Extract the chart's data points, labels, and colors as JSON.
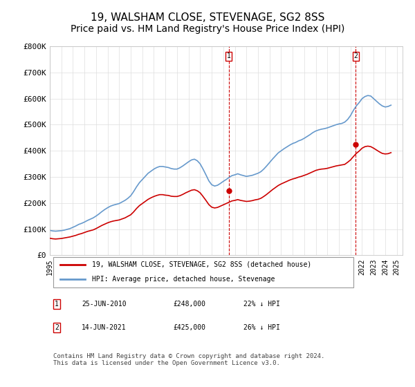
{
  "title": "19, WALSHAM CLOSE, STEVENAGE, SG2 8SS",
  "subtitle": "Price paid vs. HM Land Registry's House Price Index (HPI)",
  "ylabel": "",
  "ylim": [
    0,
    800000
  ],
  "yticks": [
    0,
    100000,
    200000,
    300000,
    400000,
    500000,
    600000,
    700000,
    800000
  ],
  "ytick_labels": [
    "£0",
    "£100K",
    "£200K",
    "£300K",
    "£400K",
    "£500K",
    "£600K",
    "£700K",
    "£800K"
  ],
  "xlim_start": 1995.0,
  "xlim_end": 2025.5,
  "line1_color": "#cc0000",
  "line2_color": "#6699cc",
  "transaction1_date": 2010.48,
  "transaction1_price": 248000,
  "transaction1_label": "1",
  "transaction2_date": 2021.45,
  "transaction2_price": 425000,
  "transaction2_label": "2",
  "legend_line1": "19, WALSHAM CLOSE, STEVENAGE, SG2 8SS (detached house)",
  "legend_line2": "HPI: Average price, detached house, Stevenage",
  "table_row1": [
    "1",
    "25-JUN-2010",
    "£248,000",
    "22% ↓ HPI"
  ],
  "table_row2": [
    "2",
    "14-JUN-2021",
    "£425,000",
    "26% ↓ HPI"
  ],
  "footnote": "Contains HM Land Registry data © Crown copyright and database right 2024.\nThis data is licensed under the Open Government Licence v3.0.",
  "background_color": "#ffffff",
  "grid_color": "#dddddd",
  "title_fontsize": 11,
  "subtitle_fontsize": 10,
  "hpi_data_x": [
    1995.0,
    1995.25,
    1995.5,
    1995.75,
    1996.0,
    1996.25,
    1996.5,
    1996.75,
    1997.0,
    1997.25,
    1997.5,
    1997.75,
    1998.0,
    1998.25,
    1998.5,
    1998.75,
    1999.0,
    1999.25,
    1999.5,
    1999.75,
    2000.0,
    2000.25,
    2000.5,
    2000.75,
    2001.0,
    2001.25,
    2001.5,
    2001.75,
    2002.0,
    2002.25,
    2002.5,
    2002.75,
    2003.0,
    2003.25,
    2003.5,
    2003.75,
    2004.0,
    2004.25,
    2004.5,
    2004.75,
    2005.0,
    2005.25,
    2005.5,
    2005.75,
    2006.0,
    2006.25,
    2006.5,
    2006.75,
    2007.0,
    2007.25,
    2007.5,
    2007.75,
    2008.0,
    2008.25,
    2008.5,
    2008.75,
    2009.0,
    2009.25,
    2009.5,
    2009.75,
    2010.0,
    2010.25,
    2010.5,
    2010.75,
    2011.0,
    2011.25,
    2011.5,
    2011.75,
    2012.0,
    2012.25,
    2012.5,
    2012.75,
    2013.0,
    2013.25,
    2013.5,
    2013.75,
    2014.0,
    2014.25,
    2014.5,
    2014.75,
    2015.0,
    2015.25,
    2015.5,
    2015.75,
    2016.0,
    2016.25,
    2016.5,
    2016.75,
    2017.0,
    2017.25,
    2017.5,
    2017.75,
    2018.0,
    2018.25,
    2018.5,
    2018.75,
    2019.0,
    2019.25,
    2019.5,
    2019.75,
    2020.0,
    2020.25,
    2020.5,
    2020.75,
    2021.0,
    2021.25,
    2021.5,
    2021.75,
    2022.0,
    2022.25,
    2022.5,
    2022.75,
    2023.0,
    2023.25,
    2023.5,
    2023.75,
    2024.0,
    2024.25,
    2024.5
  ],
  "hpi_data_y": [
    95000,
    93000,
    92000,
    93000,
    94000,
    96000,
    99000,
    102000,
    107000,
    112000,
    118000,
    122000,
    127000,
    133000,
    138000,
    143000,
    150000,
    158000,
    167000,
    175000,
    182000,
    188000,
    192000,
    195000,
    198000,
    204000,
    210000,
    218000,
    228000,
    244000,
    262000,
    278000,
    290000,
    302000,
    314000,
    322000,
    330000,
    336000,
    340000,
    340000,
    338000,
    336000,
    332000,
    330000,
    330000,
    335000,
    342000,
    350000,
    358000,
    365000,
    368000,
    362000,
    350000,
    330000,
    308000,
    285000,
    270000,
    265000,
    268000,
    275000,
    283000,
    290000,
    298000,
    305000,
    308000,
    312000,
    308000,
    305000,
    302000,
    304000,
    306000,
    310000,
    314000,
    320000,
    330000,
    342000,
    355000,
    368000,
    380000,
    392000,
    400000,
    408000,
    415000,
    422000,
    428000,
    432000,
    438000,
    442000,
    448000,
    455000,
    462000,
    470000,
    476000,
    480000,
    483000,
    485000,
    488000,
    492000,
    496000,
    500000,
    503000,
    505000,
    510000,
    520000,
    535000,
    555000,
    572000,
    585000,
    600000,
    608000,
    612000,
    610000,
    600000,
    590000,
    580000,
    572000,
    568000,
    570000,
    575000
  ],
  "hpi_red_x": [
    1995.0,
    1995.25,
    1995.5,
    1995.75,
    1996.0,
    1996.25,
    1996.5,
    1996.75,
    1997.0,
    1997.25,
    1997.5,
    1997.75,
    1998.0,
    1998.25,
    1998.5,
    1998.75,
    1999.0,
    1999.25,
    1999.5,
    1999.75,
    2000.0,
    2000.25,
    2000.5,
    2000.75,
    2001.0,
    2001.25,
    2001.5,
    2001.75,
    2002.0,
    2002.25,
    2002.5,
    2002.75,
    2003.0,
    2003.25,
    2003.5,
    2003.75,
    2004.0,
    2004.25,
    2004.5,
    2004.75,
    2005.0,
    2005.25,
    2005.5,
    2005.75,
    2006.0,
    2006.25,
    2006.5,
    2006.75,
    2007.0,
    2007.25,
    2007.5,
    2007.75,
    2008.0,
    2008.25,
    2008.5,
    2008.75,
    2009.0,
    2009.25,
    2009.5,
    2009.75,
    2010.0,
    2010.25,
    2010.5,
    2010.75,
    2011.0,
    2011.25,
    2011.5,
    2011.75,
    2012.0,
    2012.25,
    2012.5,
    2012.75,
    2013.0,
    2013.25,
    2013.5,
    2013.75,
    2014.0,
    2014.25,
    2014.5,
    2014.75,
    2015.0,
    2015.25,
    2015.5,
    2015.75,
    2016.0,
    2016.25,
    2016.5,
    2016.75,
    2017.0,
    2017.25,
    2017.5,
    2017.75,
    2018.0,
    2018.25,
    2018.5,
    2018.75,
    2019.0,
    2019.25,
    2019.5,
    2019.75,
    2020.0,
    2020.25,
    2020.5,
    2020.75,
    2021.0,
    2021.25,
    2021.5,
    2021.75,
    2022.0,
    2022.25,
    2022.5,
    2022.75,
    2023.0,
    2023.25,
    2023.5,
    2023.75,
    2024.0,
    2024.25,
    2024.5
  ],
  "hpi_red_y": [
    65000,
    63000,
    62000,
    63000,
    64000,
    66000,
    68000,
    70000,
    73000,
    76000,
    80000,
    83000,
    87000,
    91000,
    94000,
    97000,
    102000,
    108000,
    114000,
    119000,
    124000,
    128000,
    131000,
    133000,
    135000,
    139000,
    143000,
    149000,
    155000,
    166000,
    179000,
    190000,
    198000,
    206000,
    214000,
    220000,
    225000,
    229000,
    232000,
    232000,
    230000,
    229000,
    226000,
    225000,
    225000,
    228000,
    233000,
    239000,
    244000,
    249000,
    251000,
    247000,
    239000,
    225000,
    210000,
    194000,
    184000,
    181000,
    183000,
    188000,
    193000,
    198000,
    203000,
    208000,
    210000,
    213000,
    210000,
    208000,
    206000,
    207000,
    209000,
    212000,
    214000,
    218000,
    225000,
    233000,
    242000,
    251000,
    259000,
    267000,
    273000,
    278000,
    283000,
    288000,
    292000,
    295000,
    299000,
    302000,
    306000,
    310000,
    315000,
    320000,
    325000,
    328000,
    330000,
    331000,
    333000,
    336000,
    339000,
    342000,
    344000,
    346000,
    348000,
    356000,
    365000,
    378000,
    390000,
    399000,
    410000,
    416000,
    418000,
    416000,
    410000,
    403000,
    396000,
    390000,
    388000,
    389000,
    393000
  ]
}
